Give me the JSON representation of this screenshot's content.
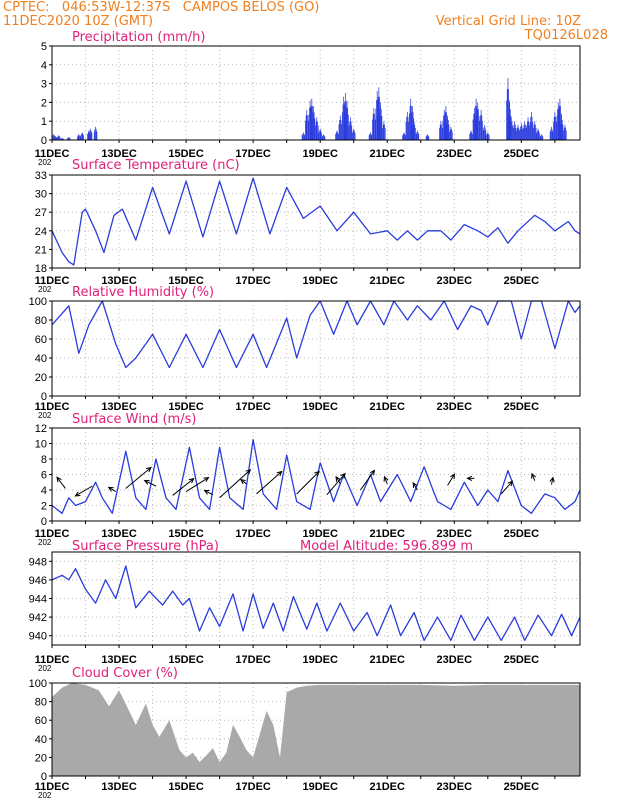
{
  "header": {
    "line1": "CPTEC:   046:53W-12:37S   CAMPOS BELOS (GO)",
    "line2_left": "11DEC2020 10Z (GMT)",
    "line2_right": "Vertical Grid Line: 10Z",
    "line3_right": "TQ0126L028"
  },
  "colors": {
    "header_text": "#f08020",
    "title_text": "#e0207a",
    "series_line": "#2a3cdc",
    "bars": "#2a3cdc",
    "cloud_fill": "#a9a9a9",
    "arrows": "#000000"
  },
  "x_axis": {
    "tick_labels": [
      "11DEC",
      "13DEC",
      "15DEC",
      "17DEC",
      "19DEC",
      "21DEC",
      "23DEC",
      "25DEC"
    ],
    "year_fragment": "202"
  },
  "chart_data": [
    {
      "type": "bar",
      "title": "Precipitation (mm/h)",
      "ylim": [
        0,
        5
      ],
      "yticks": [
        0,
        1,
        2,
        3,
        4,
        5
      ],
      "x_unit": "days since 11DEC 10Z",
      "points": [
        [
          0.05,
          0.3
        ],
        [
          0.1,
          0.2
        ],
        [
          0.2,
          0.25
        ],
        [
          0.3,
          0.1
        ],
        [
          0.5,
          0.15
        ],
        [
          0.8,
          0.3
        ],
        [
          0.9,
          0.4
        ],
        [
          1.1,
          0.5
        ],
        [
          1.15,
          0.6
        ],
        [
          1.3,
          0.7
        ],
        [
          7.5,
          0.4
        ],
        [
          7.6,
          1.6
        ],
        [
          7.7,
          2.1
        ],
        [
          7.75,
          2.2
        ],
        [
          7.8,
          1.8
        ],
        [
          7.9,
          1.2
        ],
        [
          8.0,
          0.6
        ],
        [
          8.1,
          0.3
        ],
        [
          8.5,
          0.5
        ],
        [
          8.6,
          1.3
        ],
        [
          8.7,
          2.3
        ],
        [
          8.75,
          2.5
        ],
        [
          8.8,
          2.1
        ],
        [
          8.9,
          1.2
        ],
        [
          9.0,
          0.6
        ],
        [
          9.5,
          0.4
        ],
        [
          9.6,
          1.7
        ],
        [
          9.7,
          2.6
        ],
        [
          9.75,
          2.8
        ],
        [
          9.8,
          2.0
        ],
        [
          9.9,
          1.0
        ],
        [
          10.5,
          0.4
        ],
        [
          10.6,
          1.5
        ],
        [
          10.7,
          2.2
        ],
        [
          10.75,
          1.8
        ],
        [
          10.8,
          1.0
        ],
        [
          10.9,
          0.5
        ],
        [
          11.2,
          0.3
        ],
        [
          11.6,
          1.0
        ],
        [
          11.7,
          1.6
        ],
        [
          11.75,
          1.8
        ],
        [
          11.8,
          1.3
        ],
        [
          11.9,
          0.7
        ],
        [
          12.5,
          0.5
        ],
        [
          12.6,
          1.7
        ],
        [
          12.65,
          2.2
        ],
        [
          12.7,
          2.0
        ],
        [
          12.8,
          1.6
        ],
        [
          12.9,
          0.8
        ],
        [
          13.0,
          0.4
        ],
        [
          13.6,
          3.3
        ],
        [
          13.65,
          2.0
        ],
        [
          13.7,
          1.2
        ],
        [
          13.8,
          1.0
        ],
        [
          13.9,
          0.8
        ],
        [
          14.0,
          0.9
        ],
        [
          14.1,
          1.0
        ],
        [
          14.2,
          1.2
        ],
        [
          14.3,
          1.5
        ],
        [
          14.4,
          1.0
        ],
        [
          14.5,
          0.6
        ],
        [
          14.6,
          0.3
        ],
        [
          14.9,
          0.7
        ],
        [
          15.0,
          1.5
        ],
        [
          15.1,
          2.0
        ],
        [
          15.15,
          2.2
        ],
        [
          15.2,
          1.3
        ],
        [
          15.3,
          0.8
        ]
      ]
    },
    {
      "type": "line",
      "title": "Surface Temperature (nC)",
      "ylim": [
        18,
        33
      ],
      "yticks": [
        18,
        21,
        24,
        27,
        30,
        33
      ],
      "x_unit": "days since 11DEC 10Z",
      "points": [
        [
          0,
          24
        ],
        [
          0.3,
          20.5
        ],
        [
          0.5,
          19
        ],
        [
          0.65,
          18.5
        ],
        [
          0.9,
          27
        ],
        [
          1.0,
          27.5
        ],
        [
          1.3,
          24
        ],
        [
          1.55,
          20.5
        ],
        [
          1.85,
          26.5
        ],
        [
          2.1,
          27.5
        ],
        [
          2.5,
          22.5
        ],
        [
          3.0,
          31
        ],
        [
          3.5,
          23.5
        ],
        [
          4.0,
          32
        ],
        [
          4.5,
          23
        ],
        [
          5.0,
          32
        ],
        [
          5.5,
          23.5
        ],
        [
          6.0,
          32.5
        ],
        [
          6.5,
          23.5
        ],
        [
          7.0,
          31
        ],
        [
          7.5,
          26
        ],
        [
          8.0,
          28
        ],
        [
          8.5,
          24
        ],
        [
          9.0,
          27
        ],
        [
          9.5,
          23.5
        ],
        [
          10.0,
          24
        ],
        [
          10.3,
          22.5
        ],
        [
          10.6,
          24
        ],
        [
          10.9,
          22.5
        ],
        [
          11.2,
          24
        ],
        [
          11.6,
          24
        ],
        [
          11.9,
          22.5
        ],
        [
          12.3,
          25
        ],
        [
          12.7,
          24
        ],
        [
          13.0,
          23
        ],
        [
          13.3,
          24.5
        ],
        [
          13.6,
          22
        ],
        [
          13.9,
          24
        ],
        [
          14.4,
          26.5
        ],
        [
          14.7,
          25.5
        ],
        [
          15.0,
          24
        ],
        [
          15.4,
          25.5
        ],
        [
          15.6,
          24
        ],
        [
          15.75,
          23.5
        ]
      ]
    },
    {
      "type": "line",
      "title": "Relative Humidity (%)",
      "ylim": [
        0,
        100
      ],
      "yticks": [
        0,
        20,
        40,
        60,
        80,
        100
      ],
      "x_unit": "days since 11DEC 10Z",
      "points": [
        [
          0,
          75
        ],
        [
          0.5,
          95
        ],
        [
          0.8,
          45
        ],
        [
          1.1,
          75
        ],
        [
          1.5,
          100
        ],
        [
          1.9,
          55
        ],
        [
          2.2,
          30
        ],
        [
          2.5,
          40
        ],
        [
          3.0,
          65
        ],
        [
          3.5,
          30
        ],
        [
          4.0,
          65
        ],
        [
          4.5,
          30
        ],
        [
          5.0,
          70
        ],
        [
          5.5,
          30
        ],
        [
          6.0,
          65
        ],
        [
          6.4,
          30
        ],
        [
          7.0,
          82
        ],
        [
          7.3,
          40
        ],
        [
          7.7,
          85
        ],
        [
          8.0,
          100
        ],
        [
          8.4,
          65
        ],
        [
          8.8,
          100
        ],
        [
          9.1,
          75
        ],
        [
          9.5,
          100
        ],
        [
          9.9,
          75
        ],
        [
          10.2,
          100
        ],
        [
          10.6,
          80
        ],
        [
          10.9,
          95
        ],
        [
          11.3,
          80
        ],
        [
          11.7,
          100
        ],
        [
          12.1,
          70
        ],
        [
          12.5,
          95
        ],
        [
          12.8,
          90
        ],
        [
          13.0,
          75
        ],
        [
          13.3,
          100
        ],
        [
          13.7,
          100
        ],
        [
          14.0,
          60
        ],
        [
          14.3,
          100
        ],
        [
          14.6,
          100
        ],
        [
          15.0,
          50
        ],
        [
          15.4,
          100
        ],
        [
          15.6,
          88
        ],
        [
          15.75,
          95
        ]
      ]
    },
    {
      "type": "line",
      "title": "Surface Wind (m/s)",
      "ylim": [
        0,
        12
      ],
      "yticks": [
        0,
        2,
        4,
        6,
        8,
        10,
        12
      ],
      "x_unit": "days since 11DEC 10Z",
      "points": [
        [
          0,
          2
        ],
        [
          0.3,
          1
        ],
        [
          0.5,
          3
        ],
        [
          0.7,
          2
        ],
        [
          1.0,
          2.5
        ],
        [
          1.3,
          5
        ],
        [
          1.5,
          3
        ],
        [
          1.8,
          1
        ],
        [
          2.2,
          9
        ],
        [
          2.5,
          3
        ],
        [
          2.8,
          1.5
        ],
        [
          3.1,
          8
        ],
        [
          3.4,
          3
        ],
        [
          3.7,
          1.5
        ],
        [
          4.1,
          9.5
        ],
        [
          4.4,
          3
        ],
        [
          4.7,
          1.5
        ],
        [
          5.0,
          9.5
        ],
        [
          5.3,
          3
        ],
        [
          5.7,
          1.5
        ],
        [
          6.0,
          10.5
        ],
        [
          6.3,
          3.5
        ],
        [
          6.7,
          1.5
        ],
        [
          7.0,
          8.5
        ],
        [
          7.3,
          2.5
        ],
        [
          7.7,
          1.5
        ],
        [
          8.0,
          7.5
        ],
        [
          8.4,
          2.5
        ],
        [
          8.7,
          6
        ],
        [
          9.1,
          2
        ],
        [
          9.5,
          6
        ],
        [
          9.8,
          2.5
        ],
        [
          10.3,
          6
        ],
        [
          10.7,
          2.5
        ],
        [
          11.1,
          7
        ],
        [
          11.5,
          2.5
        ],
        [
          11.9,
          1.5
        ],
        [
          12.3,
          5
        ],
        [
          12.7,
          2
        ],
        [
          13.0,
          4
        ],
        [
          13.3,
          2.5
        ],
        [
          13.6,
          6.5
        ],
        [
          14.0,
          2
        ],
        [
          14.3,
          1
        ],
        [
          14.7,
          3.5
        ],
        [
          15.0,
          3
        ],
        [
          15.3,
          1.5
        ],
        [
          15.6,
          2.5
        ],
        [
          15.75,
          4
        ]
      ],
      "vectors": [
        [
          0.4,
          4.2,
          -0.6,
          0.8
        ],
        [
          1.2,
          4.5,
          -1.2,
          -0.7
        ],
        [
          1.9,
          3.8,
          -0.5,
          0.3
        ],
        [
          2.2,
          4.2,
          1.8,
          1.5
        ],
        [
          3.1,
          4.5,
          -0.8,
          0.4
        ],
        [
          3.6,
          3.3,
          1.5,
          1.2
        ],
        [
          4.0,
          3.8,
          1.6,
          1.0
        ],
        [
          4.8,
          3.4,
          -0.6,
          0.3
        ],
        [
          5.0,
          3.0,
          2.2,
          2.0
        ],
        [
          5.8,
          4.8,
          -0.4,
          0.3
        ],
        [
          6.1,
          3.5,
          1.8,
          1.6
        ],
        [
          7.3,
          3.5,
          1.6,
          1.6
        ],
        [
          8.2,
          3.4,
          1.3,
          1.5
        ],
        [
          8.6,
          4.8,
          -0.3,
          0.5
        ],
        [
          9.2,
          4.0,
          1.0,
          1.4
        ],
        [
          10.0,
          4.8,
          -0.2,
          0.5
        ],
        [
          10.9,
          4.0,
          -0.3,
          0.5
        ],
        [
          11.8,
          4.6,
          0.5,
          0.8
        ],
        [
          12.6,
          5.5,
          -0.5,
          0.0
        ],
        [
          13.4,
          3.5,
          0.8,
          0.9
        ],
        [
          14.4,
          5.2,
          -0.2,
          0.5
        ],
        [
          14.9,
          4.7,
          0.1,
          0.5
        ]
      ]
    },
    {
      "type": "line",
      "title": "Surface Pressure (hPa)",
      "annotation": "Model Altitude: 596.899 m",
      "ylim": [
        939,
        949
      ],
      "yticks": [
        940,
        942,
        944,
        946,
        948
      ],
      "x_unit": "days since 11DEC 10Z",
      "points": [
        [
          0,
          946
        ],
        [
          0.3,
          946.5
        ],
        [
          0.5,
          946
        ],
        [
          0.7,
          947.2
        ],
        [
          1.0,
          945
        ],
        [
          1.3,
          943.5
        ],
        [
          1.6,
          946
        ],
        [
          1.9,
          944
        ],
        [
          2.2,
          947.5
        ],
        [
          2.5,
          943
        ],
        [
          2.9,
          944.8
        ],
        [
          3.3,
          943.3
        ],
        [
          3.6,
          944.8
        ],
        [
          3.9,
          943.3
        ],
        [
          4.1,
          944
        ],
        [
          4.4,
          940.5
        ],
        [
          4.7,
          943
        ],
        [
          5.0,
          941
        ],
        [
          5.4,
          944.5
        ],
        [
          5.7,
          940.5
        ],
        [
          6.0,
          944.5
        ],
        [
          6.3,
          940.8
        ],
        [
          6.6,
          943.5
        ],
        [
          6.9,
          940.5
        ],
        [
          7.2,
          944.2
        ],
        [
          7.6,
          940.7
        ],
        [
          7.9,
          943.5
        ],
        [
          8.2,
          940.5
        ],
        [
          8.6,
          943.5
        ],
        [
          9.0,
          940.5
        ],
        [
          9.4,
          942.5
        ],
        [
          9.7,
          940
        ],
        [
          10.1,
          943.3
        ],
        [
          10.4,
          940
        ],
        [
          10.8,
          942.5
        ],
        [
          11.1,
          939.5
        ],
        [
          11.5,
          942
        ],
        [
          11.9,
          939.5
        ],
        [
          12.2,
          942.2
        ],
        [
          12.6,
          939.5
        ],
        [
          13.0,
          942
        ],
        [
          13.4,
          939.5
        ],
        [
          13.8,
          942
        ],
        [
          14.1,
          939.5
        ],
        [
          14.5,
          942.2
        ],
        [
          14.9,
          940
        ],
        [
          15.2,
          942.3
        ],
        [
          15.5,
          940
        ],
        [
          15.75,
          942
        ]
      ]
    },
    {
      "type": "area",
      "title": "Cloud Cover (%)",
      "ylim": [
        0,
        100
      ],
      "yticks": [
        0,
        20,
        40,
        60,
        80,
        100
      ],
      "x_unit": "days since 11DEC 10Z",
      "points": [
        [
          0,
          85
        ],
        [
          0.3,
          95
        ],
        [
          0.6,
          100
        ],
        [
          1.0,
          98
        ],
        [
          1.4,
          92
        ],
        [
          1.7,
          75
        ],
        [
          2.0,
          92
        ],
        [
          2.3,
          70
        ],
        [
          2.5,
          55
        ],
        [
          2.8,
          78
        ],
        [
          3.0,
          55
        ],
        [
          3.2,
          42
        ],
        [
          3.5,
          60
        ],
        [
          3.8,
          28
        ],
        [
          4.0,
          20
        ],
        [
          4.2,
          25
        ],
        [
          4.4,
          15
        ],
        [
          4.6,
          22
        ],
        [
          4.8,
          30
        ],
        [
          5.0,
          15
        ],
        [
          5.2,
          25
        ],
        [
          5.4,
          55
        ],
        [
          5.6,
          42
        ],
        [
          5.8,
          28
        ],
        [
          6.0,
          20
        ],
        [
          6.2,
          45
        ],
        [
          6.4,
          70
        ],
        [
          6.6,
          55
        ],
        [
          6.8,
          20
        ],
        [
          7.0,
          90
        ],
        [
          7.3,
          95
        ],
        [
          7.6,
          97
        ],
        [
          8.0,
          98
        ],
        [
          9.0,
          98
        ],
        [
          10.0,
          98
        ],
        [
          11.0,
          98
        ],
        [
          12.0,
          97
        ],
        [
          13.0,
          98
        ],
        [
          14.0,
          98
        ],
        [
          15.0,
          98
        ],
        [
          15.75,
          98
        ]
      ]
    }
  ]
}
